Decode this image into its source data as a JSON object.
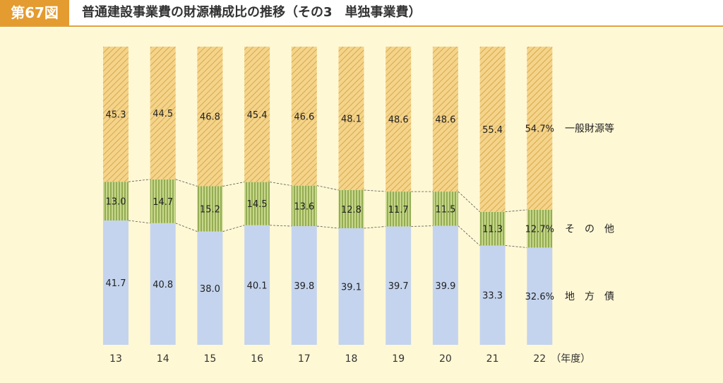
{
  "header": {
    "figure_number": "第67図",
    "title": "普通建設事業費の財源構成比の推移（その3　単独事業費）"
  },
  "colors": {
    "header_accent": "#e49b2f",
    "background": "#fff8d5",
    "general_fund": "#f4d48a",
    "general_fund_hatch": "#d9a84a",
    "others": "#c7d88c",
    "others_stripe": "#7f9a3a",
    "local_bond": "#c4d4ee"
  },
  "chart_data": {
    "type": "bar",
    "stacked": true,
    "categories": [
      "13",
      "14",
      "15",
      "16",
      "17",
      "18",
      "19",
      "20",
      "21",
      "22"
    ],
    "x_unit_label": "（年度）",
    "ylim": [
      0,
      100
    ],
    "series": [
      {
        "name": "地　方　債",
        "values": [
          41.7,
          40.8,
          38.0,
          40.1,
          39.8,
          39.1,
          39.7,
          39.9,
          33.3,
          32.6
        ],
        "labels": [
          "41.7",
          "40.8",
          "38.0",
          "40.1",
          "39.8",
          "39.1",
          "39.7",
          "39.9",
          "33.3",
          "32.6%"
        ]
      },
      {
        "name": "そ　の　他",
        "values": [
          13.0,
          14.7,
          15.2,
          14.5,
          13.6,
          12.8,
          11.7,
          11.5,
          11.3,
          12.7
        ],
        "labels": [
          "13.0",
          "14.7",
          "15.2",
          "14.5",
          "13.6",
          "12.8",
          "11.7",
          "11.5",
          "11.3",
          "12.7%"
        ]
      },
      {
        "name": "一般財源等",
        "values": [
          45.3,
          44.5,
          46.8,
          45.4,
          46.6,
          48.1,
          48.6,
          48.6,
          55.4,
          54.7
        ],
        "labels": [
          "45.3",
          "44.5",
          "46.8",
          "45.4",
          "46.6",
          "48.1",
          "48.6",
          "48.6",
          "55.4",
          "54.7%"
        ]
      }
    ],
    "grid": false,
    "legend": "right-side labels"
  }
}
